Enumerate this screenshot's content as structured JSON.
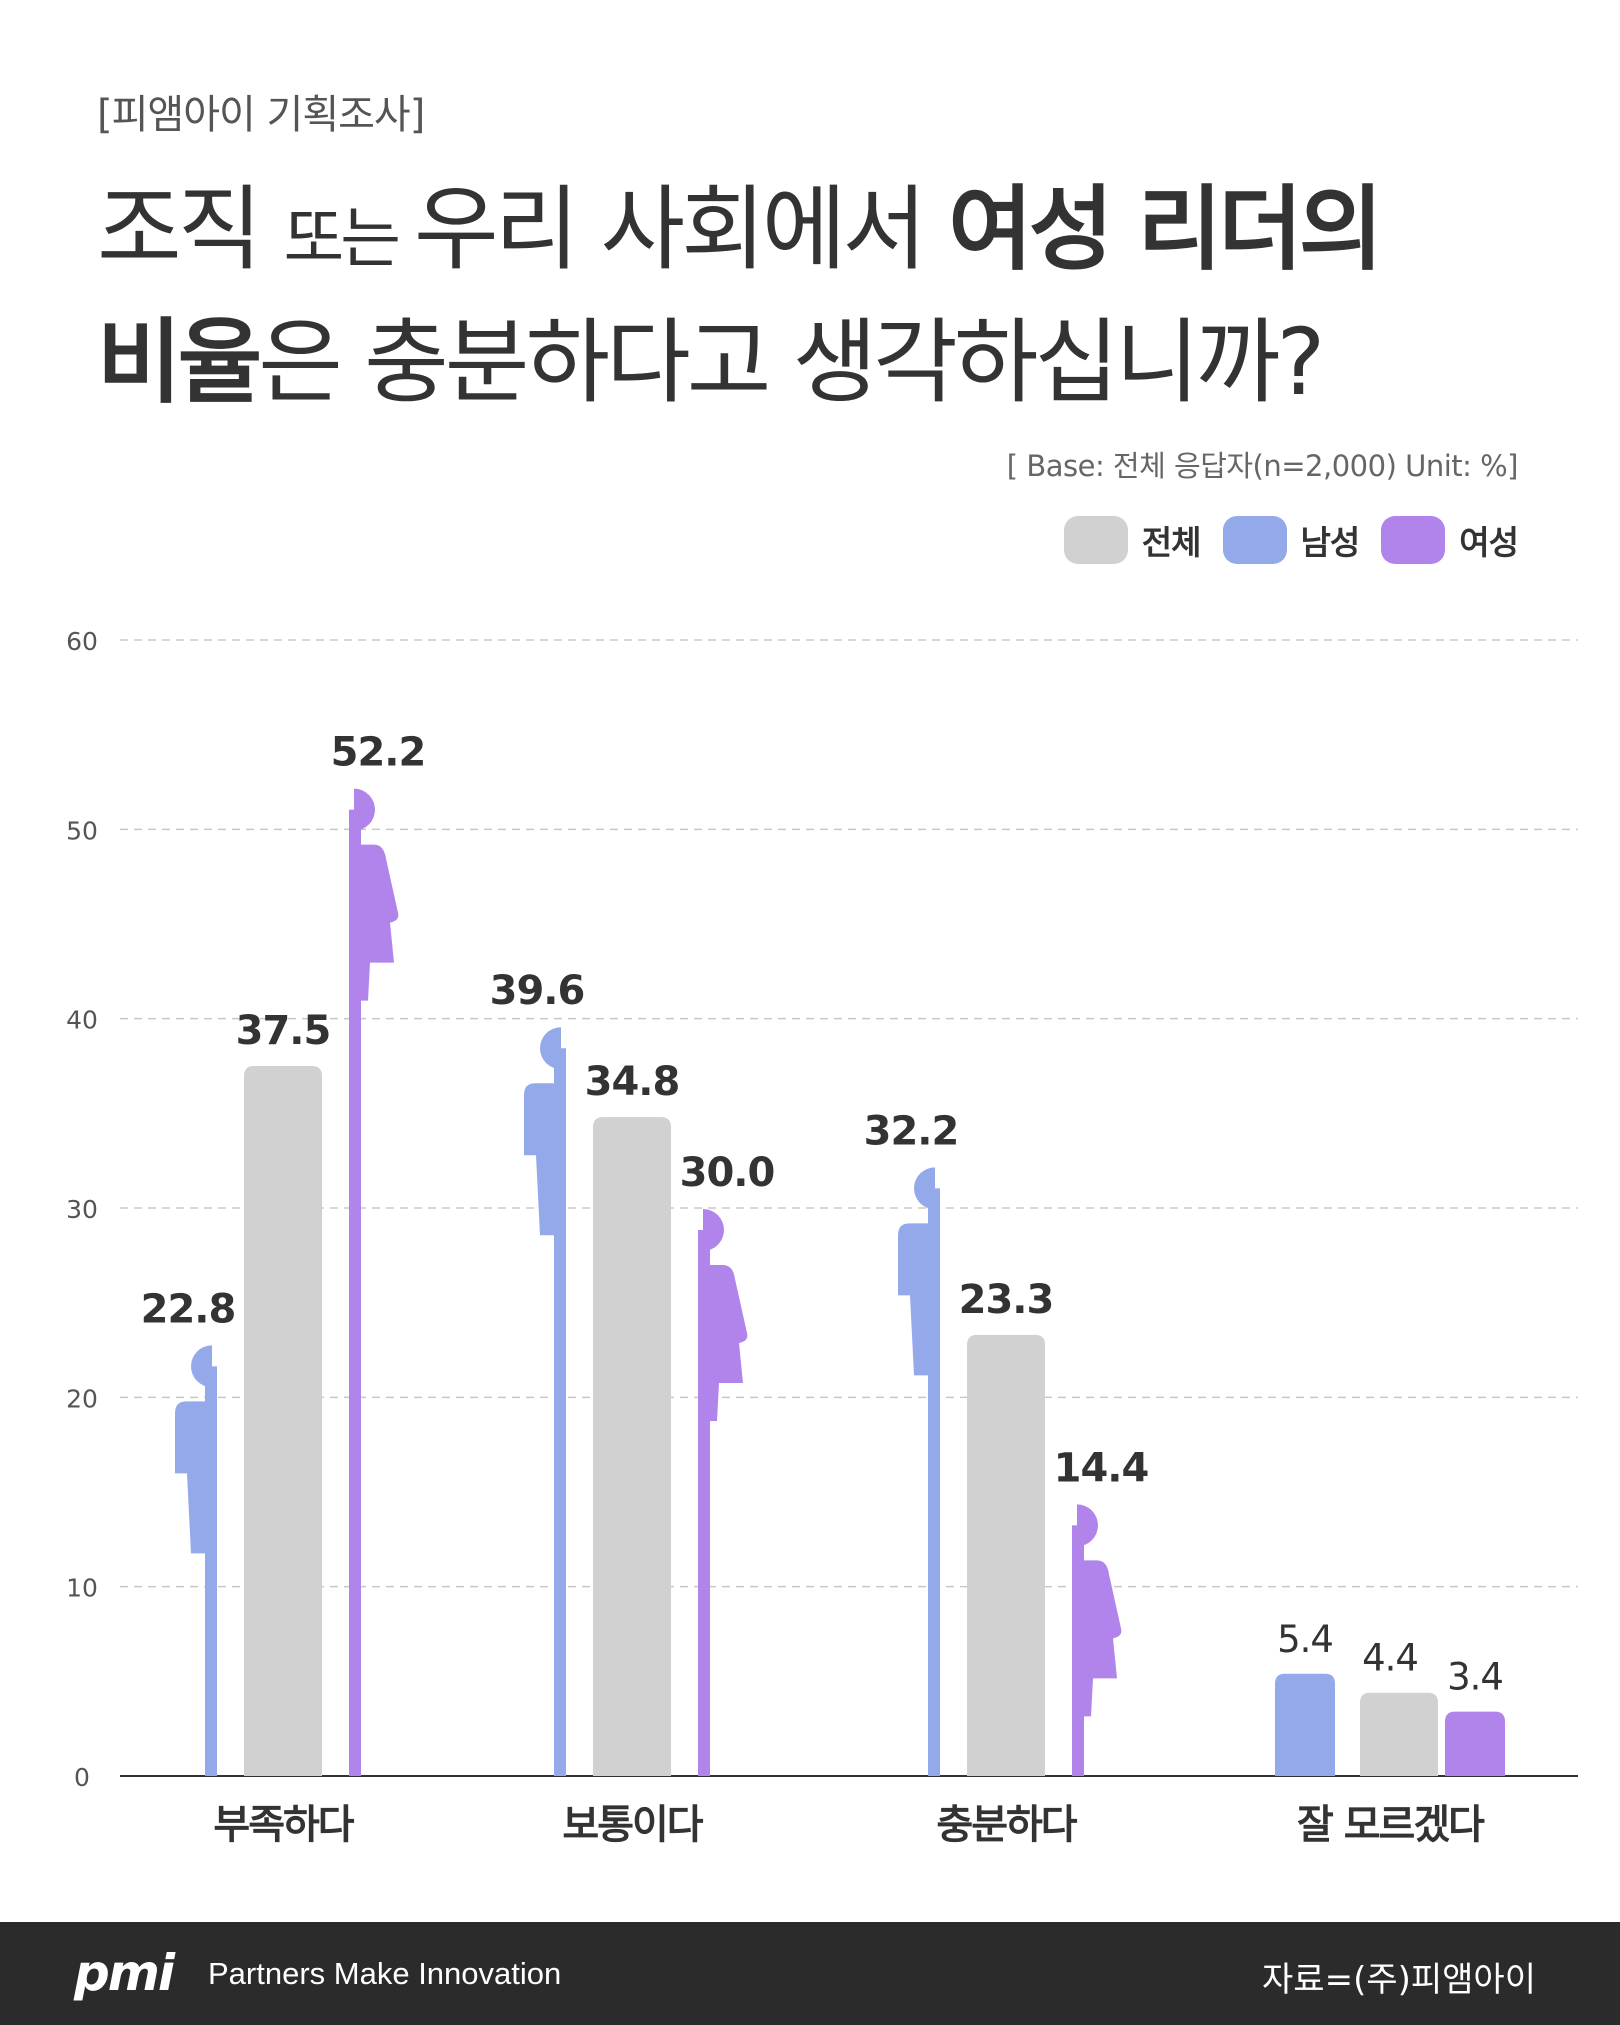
{
  "header": {
    "survey_tag": "[피앰아이 기획조사]",
    "title_line1": [
      {
        "text": "조직 ",
        "style": "normal"
      },
      {
        "text": "또는 ",
        "style": "small"
      },
      {
        "text": "우리 사회에서 ",
        "style": "normal"
      },
      {
        "text": "여성 리더의",
        "style": "bold"
      }
    ],
    "title_line2": [
      {
        "text": "비율",
        "style": "bold"
      },
      {
        "text": "은 충분하다고 생각하십니까?",
        "style": "normal"
      }
    ],
    "base_note": "[ Base: 전체 응답자(n=2,000)  Unit: %]"
  },
  "legend": [
    {
      "label": "전체",
      "color": "#d1d1d1"
    },
    {
      "label": "남성",
      "color": "#94a9ea"
    },
    {
      "label": "여성",
      "color": "#b184ec"
    }
  ],
  "chart_data": {
    "type": "bar",
    "categories": [
      "부족하다",
      "보통이다",
      "충분하다",
      "잘 모르겠다"
    ],
    "series": [
      {
        "name": "남성",
        "values": [
          22.8,
          39.6,
          32.2,
          5.4
        ],
        "color": "#94a9ea"
      },
      {
        "name": "전체",
        "values": [
          37.5,
          34.8,
          23.3,
          4.4
        ],
        "color": "#d1d1d1"
      },
      {
        "name": "여성",
        "values": [
          52.2,
          30.0,
          14.4,
          3.4
        ],
        "color": "#b184ec"
      }
    ],
    "value_labels": [
      [
        "22.8",
        "37.5",
        "52.2"
      ],
      [
        "39.6",
        "34.8",
        "30.0"
      ],
      [
        "32.2",
        "23.3",
        "14.4"
      ],
      [
        "5.4",
        "4.4",
        "3.4"
      ]
    ],
    "ylim": [
      0,
      60
    ],
    "yticks": [
      0,
      10,
      20,
      30,
      40,
      50,
      60
    ],
    "grid": true,
    "legend_position": "top-right",
    "title": "조직 또는 우리 사회에서 여성 리더의 비율은 충분하다고 생각하십니까?",
    "xlabel": "",
    "ylabel": ""
  },
  "footer": {
    "logo_text": "pmi",
    "tagline": "Partners Make Innovation",
    "source": "자료=(주)피앰아이"
  }
}
